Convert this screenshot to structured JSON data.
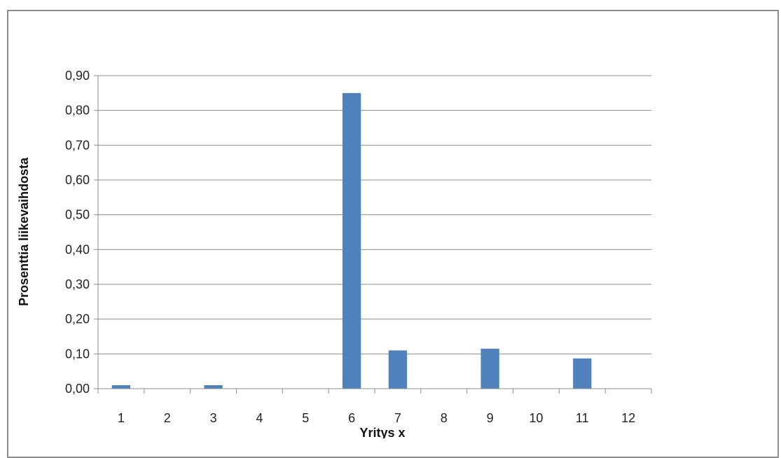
{
  "chart_data": {
    "type": "bar",
    "title": "",
    "xlabel": "Yritys x",
    "ylabel": "Prosenttia liikevaihdosta",
    "categories": [
      "1",
      "2",
      "3",
      "4",
      "5",
      "6",
      "7",
      "8",
      "9",
      "10",
      "11",
      "12"
    ],
    "series": [
      {
        "values": [
          0.01,
          0,
          0.01,
          0,
          0,
          0.85,
          0.11,
          0,
          0.115,
          0,
          0.087,
          0
        ]
      }
    ],
    "ylim": [
      0,
      0.9
    ],
    "yticks": [
      0,
      0.1,
      0.2,
      0.3,
      0.4,
      0.5,
      0.6,
      0.7,
      0.8,
      0.9
    ],
    "ytick_labels": [
      "0,00",
      "0,10",
      "0,20",
      "0,30",
      "0,40",
      "0,50",
      "0,60",
      "0,70",
      "0,80",
      "0,90"
    ],
    "grid": true,
    "legend": "none",
    "bar_color": "#4f81bd",
    "grid_color": "#8c8c8c"
  }
}
